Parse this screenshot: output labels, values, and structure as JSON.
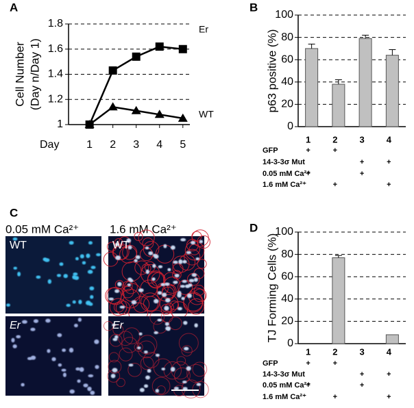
{
  "panel_labels": [
    "A",
    "B",
    "C",
    "D"
  ],
  "chart_data": [
    {
      "type": "line",
      "x_label": "Day",
      "y_label": [
        "Cell Number",
        "(Day n/Day 1)"
      ],
      "x": [
        1,
        2,
        3,
        4,
        5
      ],
      "xlim": [
        0.1,
        5.3
      ],
      "xticks": [
        1,
        2,
        3,
        4,
        5
      ],
      "ylim": [
        1,
        1.8
      ],
      "yticks": [
        1,
        1.2,
        1.4,
        1.6,
        1.8
      ],
      "grid": true,
      "series": [
        {
          "name": "Er",
          "color": "#000000",
          "marker": "square",
          "values": [
            1.0,
            1.43,
            1.54,
            1.62,
            1.6
          ]
        },
        {
          "name": "WT",
          "color": "#000000",
          "marker": "triangle",
          "values": [
            1.0,
            1.14,
            1.11,
            1.08,
            1.05
          ]
        }
      ]
    },
    {
      "type": "bar",
      "y_label": "p63 positive (%)",
      "categories": [
        "1",
        "2",
        "3",
        "4"
      ],
      "values": [
        70,
        38,
        79,
        64
      ],
      "errors": [
        4,
        4,
        3,
        5
      ],
      "color": "#c0c0c0",
      "ylim": [
        0,
        100
      ],
      "yticks": [
        0,
        20,
        40,
        60,
        80,
        100
      ],
      "grid": true,
      "conditions": [
        {
          "label": "GFP",
          "marks": [
            "+",
            "+",
            null,
            null
          ]
        },
        {
          "label": "14-3-3σ Mut",
          "marks": [
            null,
            null,
            "+",
            "+"
          ]
        },
        {
          "label": "0.05 mM Ca²⁺",
          "marks": [
            "+",
            null,
            "+",
            null
          ]
        },
        {
          "label": "1.6 mM Ca²⁺",
          "marks": [
            null,
            "+",
            null,
            "+"
          ]
        }
      ]
    },
    {
      "type": "bar",
      "y_label": "TJ Forming Cells (%)",
      "categories": [
        "1",
        "2",
        "3",
        "4"
      ],
      "values": [
        0,
        77,
        0,
        8
      ],
      "errors": [
        0,
        2,
        0,
        0
      ],
      "color": "#c0c0c0",
      "ylim": [
        0,
        100
      ],
      "yticks": [
        0,
        20,
        40,
        60,
        80,
        100
      ],
      "grid": true,
      "conditions": [
        {
          "label": "GFP",
          "marks": [
            "+",
            "+",
            null,
            null
          ]
        },
        {
          "label": "14-3-3σ Mut",
          "marks": [
            null,
            null,
            "+",
            "+"
          ]
        },
        {
          "label": "0.05 mM Ca²⁺",
          "marks": [
            "+",
            null,
            "+",
            null
          ]
        },
        {
          "label": "1.6 mM Ca²⁺",
          "marks": [
            null,
            "+",
            null,
            "+"
          ]
        }
      ]
    }
  ],
  "panel_c": {
    "columns": [
      "0.05 mM Ca²⁺",
      "1.6 mM Ca²⁺"
    ],
    "rows": [
      "WT",
      "Er"
    ]
  }
}
